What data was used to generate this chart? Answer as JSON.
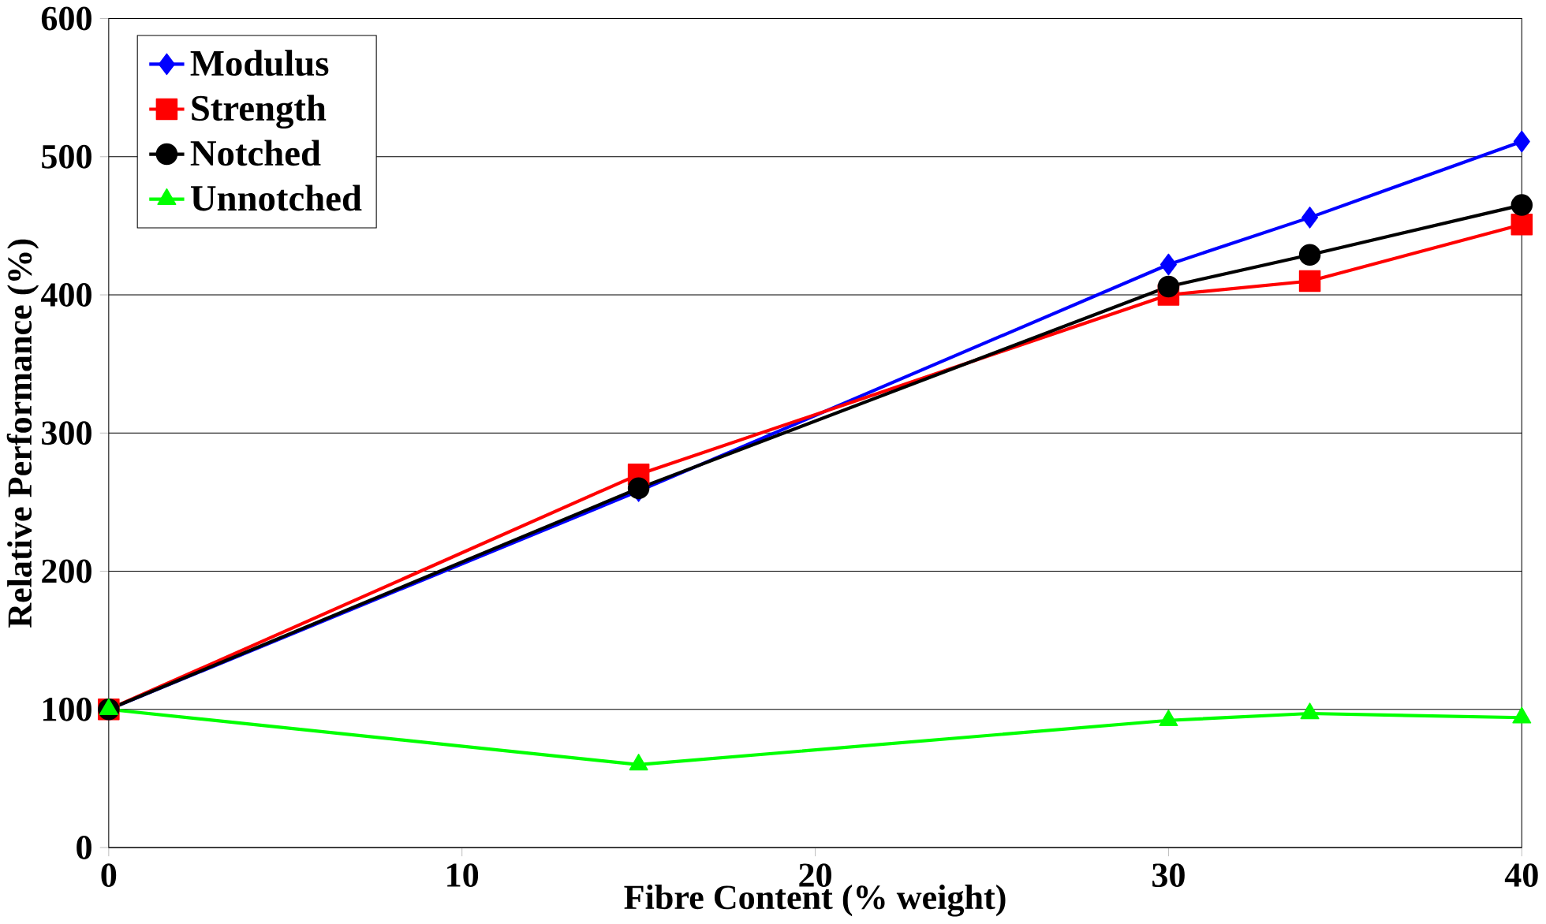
{
  "chart_data": {
    "type": "line",
    "xlabel": "Fibre Content (% weight)",
    "ylabel": "Relative Performance (%)",
    "x": [
      0,
      15,
      30,
      34,
      40
    ],
    "series": [
      {
        "name": "Modulus",
        "color": "#0000ff",
        "marker": "diamond",
        "values": [
          100,
          258,
          422,
          456,
          511
        ]
      },
      {
        "name": "Strength",
        "color": "#ff0000",
        "marker": "square",
        "values": [
          100,
          270,
          400,
          410,
          451
        ]
      },
      {
        "name": "Notched",
        "color": "#000000",
        "marker": "circle",
        "values": [
          100,
          260,
          406,
          429,
          465
        ]
      },
      {
        "name": "Unnotched",
        "color": "#00ff00",
        "marker": "triangle",
        "values": [
          100,
          60,
          92,
          97,
          94
        ]
      }
    ],
    "xlim": [
      0,
      40
    ],
    "ylim": [
      0,
      600
    ],
    "xticks": [
      0,
      10,
      20,
      30,
      40
    ],
    "yticks": [
      0,
      100,
      200,
      300,
      400,
      500,
      600
    ],
    "grid": "y",
    "legend": "top left",
    "line_style": "solid"
  }
}
